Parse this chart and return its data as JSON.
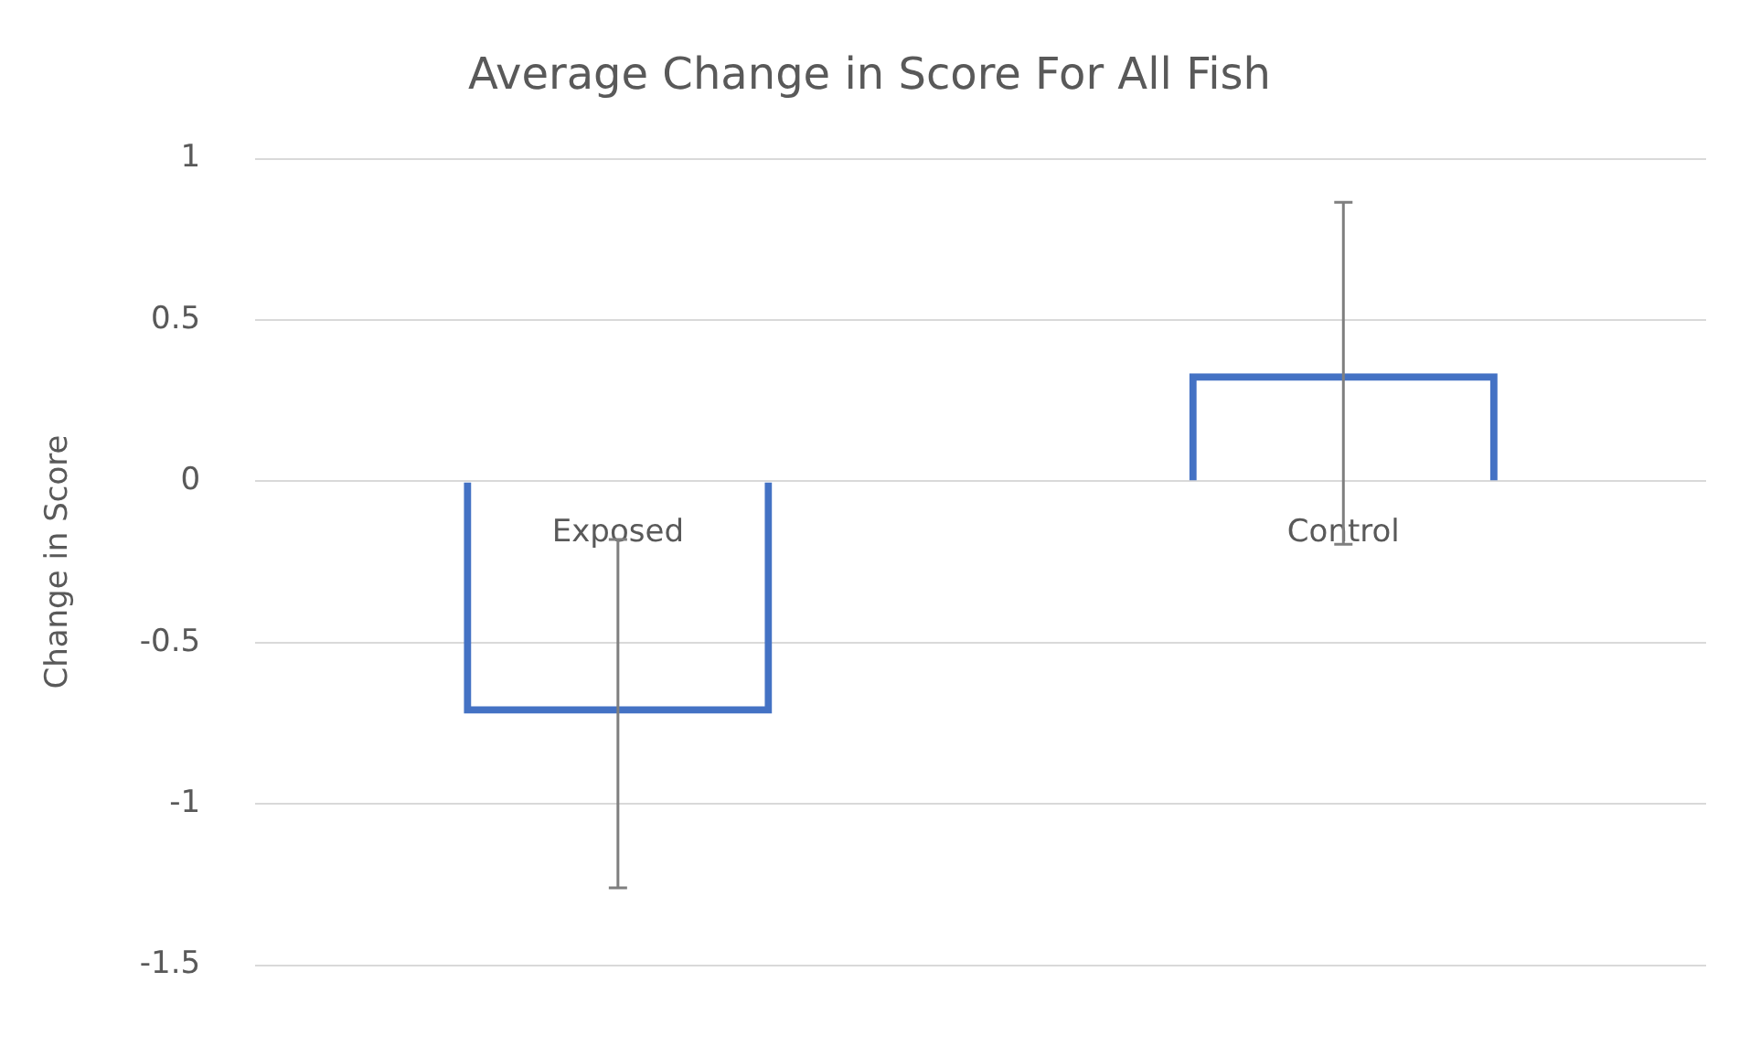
{
  "chart_data": {
    "type": "bar",
    "title": "Average Change in Score For All Fish",
    "ylabel": "Change in Score",
    "categories": [
      "Exposed",
      "Control"
    ],
    "series": [
      {
        "color": "#4472c4",
        "values": [
          -0.72,
          0.335
        ],
        "errors": [
          0.54,
          0.53
        ]
      }
    ],
    "ylim": [
      -1.5,
      1
    ],
    "yticks": [
      -1.5,
      -1,
      -0.5,
      0,
      0.5,
      1
    ],
    "grid": "y",
    "legend": false
  }
}
